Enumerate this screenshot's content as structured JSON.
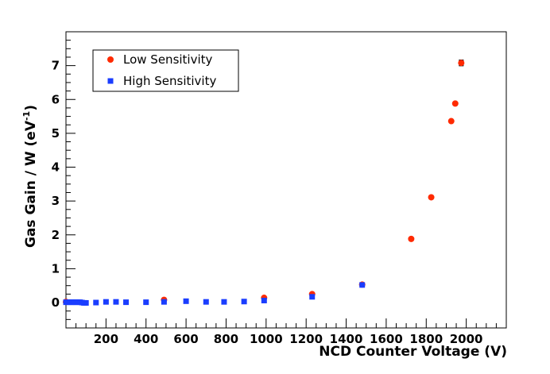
{
  "chart_data": {
    "type": "scatter",
    "title": "",
    "xlabel": "NCD Counter Voltage (V)",
    "ylabel": {
      "main": "Gas Gain / W (eV",
      "sup": "-1",
      "close": ")"
    },
    "xlim": [
      0,
      2200
    ],
    "ylim": [
      -0.75,
      8
    ],
    "xticks": [
      200,
      400,
      600,
      800,
      1000,
      1200,
      1400,
      1600,
      1800,
      2000
    ],
    "xtick_labels": [
      "200",
      "400",
      "600",
      "800",
      "1000",
      "1200",
      "1400",
      "1600",
      "1800",
      "2000"
    ],
    "yticks": [
      0,
      1,
      2,
      3,
      4,
      5,
      6,
      7
    ],
    "ytick_labels": [
      "0",
      "1",
      "2",
      "3",
      "4",
      "5",
      "6",
      "7"
    ],
    "legend_position": "top-left",
    "series": [
      {
        "name": "Low Sensitivity",
        "marker": "circle",
        "color": "#ff2a00",
        "x": [
          0,
          490,
          990,
          1230,
          1480,
          1725,
          1825,
          1925,
          1945,
          1975
        ],
        "y": [
          0.02,
          0.08,
          0.14,
          0.25,
          0.53,
          1.88,
          3.11,
          5.36,
          5.88,
          7.08
        ],
        "yerr": [
          0,
          0,
          0,
          0,
          0,
          0,
          0,
          0,
          0,
          0.08
        ]
      },
      {
        "name": "High Sensitivity",
        "marker": "square",
        "color": "#1a3dff",
        "x": [
          0,
          10,
          20,
          30,
          40,
          50,
          60,
          70,
          80,
          90,
          100,
          150,
          200,
          250,
          300,
          400,
          490,
          600,
          700,
          790,
          890,
          990,
          1230,
          1480
        ],
        "y": [
          0.01,
          0.01,
          0.01,
          0.01,
          0.01,
          0.01,
          0.01,
          0.01,
          0.0,
          -0.01,
          -0.01,
          0.0,
          0.02,
          0.02,
          0.01,
          0.01,
          0.02,
          0.04,
          0.02,
          0.02,
          0.03,
          0.06,
          0.17,
          0.52
        ]
      }
    ]
  },
  "colors": {
    "low": "#ff2a00",
    "high": "#1a3dff",
    "axis": "#000000",
    "background": "#ffffff"
  }
}
